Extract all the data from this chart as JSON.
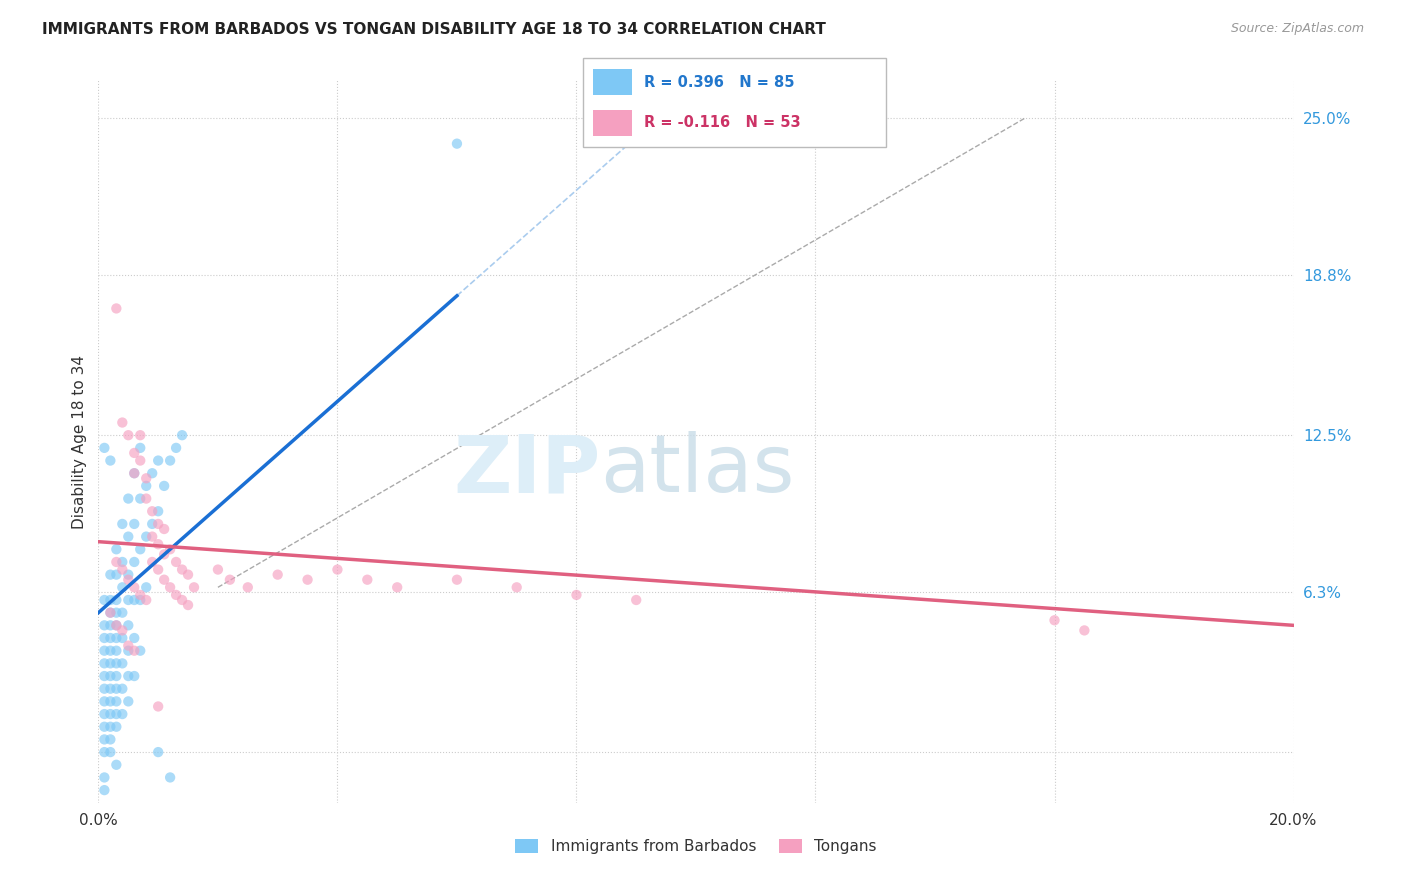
{
  "title": "IMMIGRANTS FROM BARBADOS VS TONGAN DISABILITY AGE 18 TO 34 CORRELATION CHART",
  "source": "Source: ZipAtlas.com",
  "ylabel": "Disability Age 18 to 34",
  "xlim": [
    0.0,
    0.2
  ],
  "ylim": [
    -0.02,
    0.265
  ],
  "x_ticks": [
    0.0,
    0.04,
    0.08,
    0.12,
    0.16,
    0.2
  ],
  "x_tick_labels": [
    "0.0%",
    "",
    "",
    "",
    "",
    "20.0%"
  ],
  "y_tick_labels_right": [
    "",
    "6.3%",
    "12.5%",
    "18.8%",
    "25.0%"
  ],
  "y_ticks_right": [
    0.0,
    0.063,
    0.125,
    0.188,
    0.25
  ],
  "r_blue": 0.396,
  "n_blue": 85,
  "r_pink": -0.116,
  "n_pink": 53,
  "blue_color": "#7ec8f5",
  "pink_color": "#f5a0c0",
  "blue_line_color": "#1a6fd4",
  "pink_line_color": "#e06080",
  "legend_labels": [
    "Immigrants from Barbados",
    "Tongans"
  ],
  "blue_scatter": [
    [
      0.001,
      0.06
    ],
    [
      0.001,
      0.05
    ],
    [
      0.001,
      0.045
    ],
    [
      0.001,
      0.04
    ],
    [
      0.001,
      0.035
    ],
    [
      0.001,
      0.03
    ],
    [
      0.001,
      0.025
    ],
    [
      0.001,
      0.02
    ],
    [
      0.001,
      0.015
    ],
    [
      0.001,
      0.01
    ],
    [
      0.001,
      0.005
    ],
    [
      0.001,
      0.0
    ],
    [
      0.002,
      0.07
    ],
    [
      0.002,
      0.06
    ],
    [
      0.002,
      0.055
    ],
    [
      0.002,
      0.05
    ],
    [
      0.002,
      0.045
    ],
    [
      0.002,
      0.04
    ],
    [
      0.002,
      0.035
    ],
    [
      0.002,
      0.03
    ],
    [
      0.002,
      0.025
    ],
    [
      0.002,
      0.02
    ],
    [
      0.002,
      0.015
    ],
    [
      0.002,
      0.01
    ],
    [
      0.002,
      0.005
    ],
    [
      0.002,
      0.0
    ],
    [
      0.003,
      0.08
    ],
    [
      0.003,
      0.07
    ],
    [
      0.003,
      0.06
    ],
    [
      0.003,
      0.055
    ],
    [
      0.003,
      0.05
    ],
    [
      0.003,
      0.045
    ],
    [
      0.003,
      0.04
    ],
    [
      0.003,
      0.035
    ],
    [
      0.003,
      0.03
    ],
    [
      0.003,
      0.025
    ],
    [
      0.003,
      0.02
    ],
    [
      0.003,
      0.015
    ],
    [
      0.003,
      0.01
    ],
    [
      0.004,
      0.09
    ],
    [
      0.004,
      0.075
    ],
    [
      0.004,
      0.065
    ],
    [
      0.004,
      0.055
    ],
    [
      0.004,
      0.045
    ],
    [
      0.004,
      0.035
    ],
    [
      0.004,
      0.025
    ],
    [
      0.004,
      0.015
    ],
    [
      0.005,
      0.1
    ],
    [
      0.005,
      0.085
    ],
    [
      0.005,
      0.07
    ],
    [
      0.005,
      0.06
    ],
    [
      0.005,
      0.05
    ],
    [
      0.005,
      0.04
    ],
    [
      0.005,
      0.03
    ],
    [
      0.005,
      0.02
    ],
    [
      0.006,
      0.11
    ],
    [
      0.006,
      0.09
    ],
    [
      0.006,
      0.075
    ],
    [
      0.006,
      0.06
    ],
    [
      0.006,
      0.045
    ],
    [
      0.006,
      0.03
    ],
    [
      0.007,
      0.12
    ],
    [
      0.007,
      0.1
    ],
    [
      0.007,
      0.08
    ],
    [
      0.007,
      0.06
    ],
    [
      0.007,
      0.04
    ],
    [
      0.008,
      0.105
    ],
    [
      0.008,
      0.085
    ],
    [
      0.008,
      0.065
    ],
    [
      0.009,
      0.11
    ],
    [
      0.009,
      0.09
    ],
    [
      0.01,
      0.115
    ],
    [
      0.01,
      0.095
    ],
    [
      0.011,
      0.105
    ],
    [
      0.012,
      0.115
    ],
    [
      0.013,
      0.12
    ],
    [
      0.014,
      0.125
    ],
    [
      0.002,
      0.115
    ],
    [
      0.001,
      0.12
    ],
    [
      0.06,
      0.24
    ],
    [
      0.001,
      -0.01
    ],
    [
      0.001,
      -0.015
    ],
    [
      0.003,
      -0.005
    ],
    [
      0.01,
      0.0
    ],
    [
      0.012,
      -0.01
    ]
  ],
  "pink_scatter": [
    [
      0.003,
      0.175
    ],
    [
      0.004,
      0.13
    ],
    [
      0.005,
      0.125
    ],
    [
      0.006,
      0.118
    ],
    [
      0.006,
      0.11
    ],
    [
      0.007,
      0.125
    ],
    [
      0.007,
      0.115
    ],
    [
      0.008,
      0.108
    ],
    [
      0.008,
      0.1
    ],
    [
      0.009,
      0.095
    ],
    [
      0.009,
      0.085
    ],
    [
      0.01,
      0.09
    ],
    [
      0.01,
      0.082
    ],
    [
      0.011,
      0.088
    ],
    [
      0.011,
      0.078
    ],
    [
      0.012,
      0.08
    ],
    [
      0.013,
      0.075
    ],
    [
      0.014,
      0.072
    ],
    [
      0.015,
      0.07
    ],
    [
      0.016,
      0.065
    ],
    [
      0.003,
      0.075
    ],
    [
      0.004,
      0.072
    ],
    [
      0.005,
      0.068
    ],
    [
      0.006,
      0.065
    ],
    [
      0.007,
      0.062
    ],
    [
      0.008,
      0.06
    ],
    [
      0.009,
      0.075
    ],
    [
      0.01,
      0.072
    ],
    [
      0.011,
      0.068
    ],
    [
      0.012,
      0.065
    ],
    [
      0.013,
      0.062
    ],
    [
      0.014,
      0.06
    ],
    [
      0.015,
      0.058
    ],
    [
      0.02,
      0.072
    ],
    [
      0.022,
      0.068
    ],
    [
      0.025,
      0.065
    ],
    [
      0.03,
      0.07
    ],
    [
      0.035,
      0.068
    ],
    [
      0.04,
      0.072
    ],
    [
      0.045,
      0.068
    ],
    [
      0.05,
      0.065
    ],
    [
      0.06,
      0.068
    ],
    [
      0.07,
      0.065
    ],
    [
      0.08,
      0.062
    ],
    [
      0.09,
      0.06
    ],
    [
      0.16,
      0.052
    ],
    [
      0.165,
      0.048
    ],
    [
      0.002,
      0.055
    ],
    [
      0.003,
      0.05
    ],
    [
      0.004,
      0.048
    ],
    [
      0.005,
      0.042
    ],
    [
      0.006,
      0.04
    ],
    [
      0.01,
      0.018
    ]
  ],
  "blue_line": [
    [
      0.0,
      0.055
    ],
    [
      0.06,
      0.18
    ]
  ],
  "pink_line": [
    [
      0.0,
      0.083
    ],
    [
      0.2,
      0.05
    ]
  ],
  "diag_line": [
    [
      0.02,
      0.065
    ],
    [
      0.155,
      0.25
    ]
  ]
}
